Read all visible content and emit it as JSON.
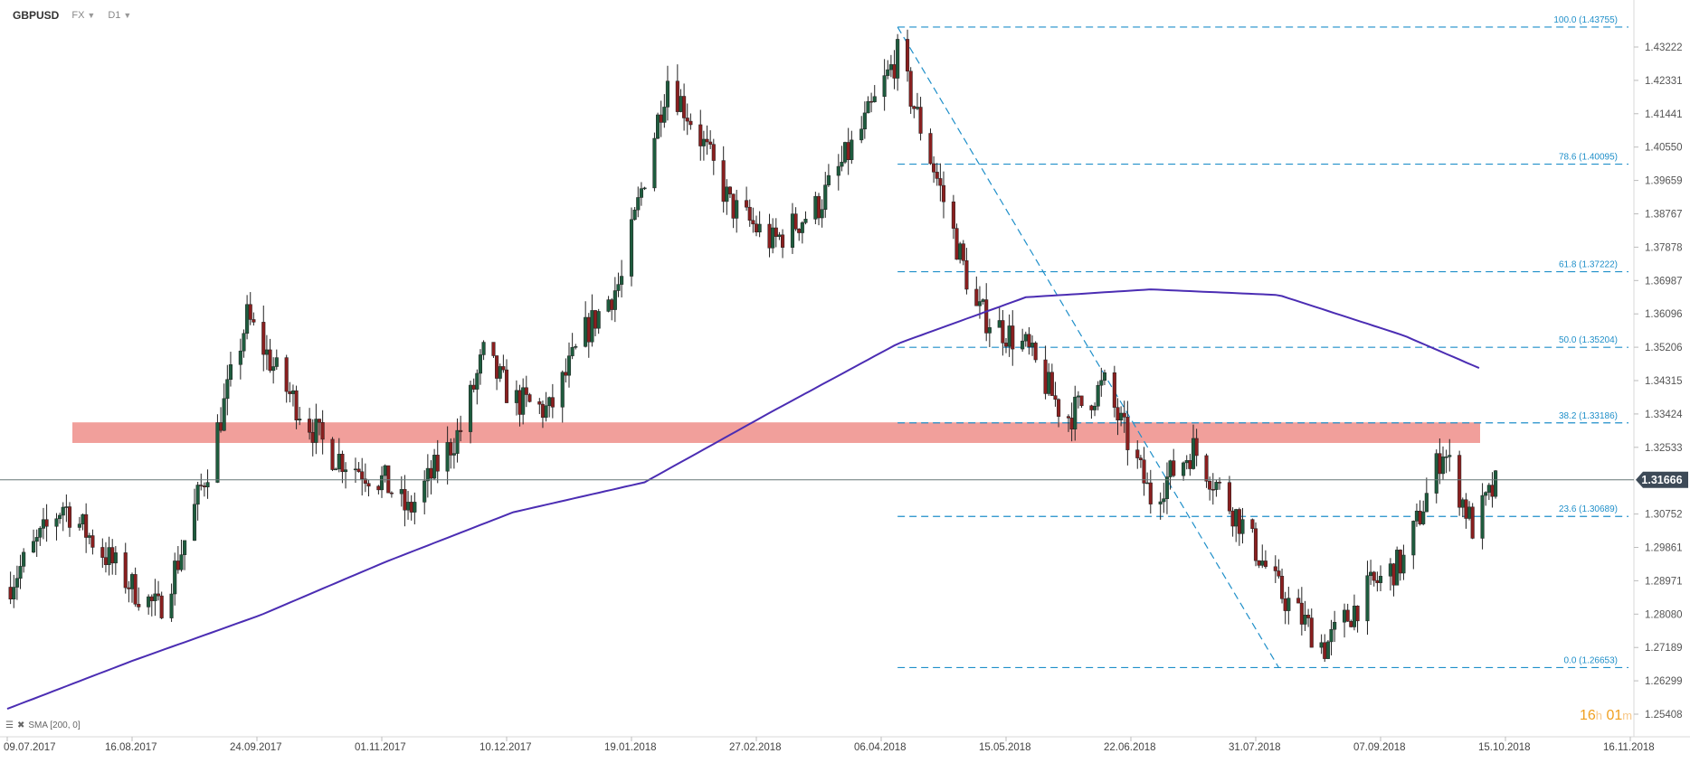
{
  "header": {
    "symbol": "GBPUSD",
    "market": "FX",
    "timeframe": "D1"
  },
  "indicator_label": "SMA [200, 0]",
  "timer": {
    "hours": "16",
    "h": "h",
    "minutes": "01",
    "m": "m"
  },
  "colors": {
    "bull": "#1e5c3e",
    "bear": "#8a1f1f",
    "wick": "#222222",
    "sma": "#4b2db3",
    "fib": "#1f8fc9",
    "zone": "#ee8e8a",
    "price_line": "#667777",
    "price_tag_bg": "#3d4a57"
  },
  "chart_data": {
    "type": "candlestick",
    "symbol": "GBPUSD",
    "timeframe": "D1",
    "x_labels": [
      "09.07.2017",
      "16.08.2017",
      "24.09.2017",
      "01.11.2017",
      "10.12.2017",
      "19.01.2018",
      "27.02.2018",
      "06.04.2018",
      "15.05.2018",
      "22.06.2018",
      "31.07.2018",
      "07.09.2018",
      "15.10.2018",
      "16.11.2018"
    ],
    "y_ticks": [
      "1.43222",
      "1.42331",
      "1.41441",
      "1.40550",
      "1.39659",
      "1.38767",
      "1.37878",
      "1.36987",
      "1.36096",
      "1.35206",
      "1.34315",
      "1.33424",
      "1.32533",
      "1.31666",
      "1.30752",
      "1.29861",
      "1.28971",
      "1.28080",
      "1.27189",
      "1.26299",
      "1.25408"
    ],
    "ylim": [
      1.25408,
      1.43755
    ],
    "current_price": "1.31666",
    "fibonacci": [
      {
        "label": "100.0 (1.43755)",
        "value": 1.43755
      },
      {
        "label": "78.6 (1.40095)",
        "value": 1.40095
      },
      {
        "label": "61.8 (1.37222)",
        "value": 1.37222
      },
      {
        "label": "50.0 (1.35204)",
        "value": 1.35204
      },
      {
        "label": "38.2 (1.33186)",
        "value": 1.33186
      },
      {
        "label": "23.6 (1.30689)",
        "value": 1.30689
      },
      {
        "label": "0.0 (1.26653)",
        "value": 1.26653
      }
    ],
    "fib_trend_line": {
      "from": [
        "06.04.2018",
        1.43755
      ],
      "to": [
        "31.07.2018",
        1.26653
      ]
    },
    "resistance_zone": [
      1.3265,
      1.332
    ],
    "sma_200": [
      [
        "09.07.2017",
        1.2555
      ],
      [
        "16.08.2017",
        1.2683
      ],
      [
        "24.09.2017",
        1.2805
      ],
      [
        "01.11.2017",
        1.2947
      ],
      [
        "10.12.2017",
        1.308
      ],
      [
        "19.01.2018",
        1.316
      ],
      [
        "27.02.2018",
        1.335
      ],
      [
        "06.04.2018",
        1.353
      ],
      [
        "15.05.2018",
        1.3654
      ],
      [
        "22.06.2018",
        1.3675
      ],
      [
        "31.07.2018",
        1.366
      ],
      [
        "07.09.2018",
        1.3552
      ],
      [
        "30.09.2018",
        1.3465
      ]
    ],
    "close_path": [
      [
        "09.07.2017",
        1.288
      ],
      [
        "26.07.2017",
        1.31
      ],
      [
        "16.08.2017",
        1.288
      ],
      [
        "24.08.2017",
        1.282
      ],
      [
        "30.08.2017",
        1.295
      ],
      [
        "08.09.2017",
        1.32
      ],
      [
        "20.09.2017",
        1.36
      ],
      [
        "01.10.2017",
        1.342
      ],
      [
        "15.10.2017",
        1.324
      ],
      [
        "01.11.2017",
        1.316
      ],
      [
        "08.11.2017",
        1.308
      ],
      [
        "24.11.2017",
        1.33
      ],
      [
        "01.12.2017",
        1.35
      ],
      [
        "10.12.2017",
        1.338
      ],
      [
        "21.12.2017",
        1.335
      ],
      [
        "01.01.2018",
        1.356
      ],
      [
        "12.01.2018",
        1.37
      ],
      [
        "19.01.2018",
        1.398
      ],
      [
        "26.01.2018",
        1.424
      ],
      [
        "04.02.2018",
        1.41
      ],
      [
        "14.02.2018",
        1.39
      ],
      [
        "27.02.2018",
        1.38
      ],
      [
        "13.03.2018",
        1.39
      ],
      [
        "26.03.2018",
        1.41
      ],
      [
        "06.04.2018",
        1.43
      ],
      [
        "17.04.2018",
        1.4
      ],
      [
        "30.04.2018",
        1.362
      ],
      [
        "15.05.2018",
        1.352
      ],
      [
        "27.05.2018",
        1.333
      ],
      [
        "08.06.2018",
        1.342
      ],
      [
        "22.06.2018",
        1.312
      ],
      [
        "05.07.2018",
        1.325
      ],
      [
        "19.07.2018",
        1.306
      ],
      [
        "31.07.2018",
        1.287
      ],
      [
        "14.08.2018",
        1.272
      ],
      [
        "28.08.2018",
        1.288
      ],
      [
        "07.09.2018",
        1.295
      ],
      [
        "19.09.2018",
        1.325
      ],
      [
        "28.09.2018",
        1.304
      ],
      [
        "06.10.2018",
        1.3166
      ]
    ]
  }
}
